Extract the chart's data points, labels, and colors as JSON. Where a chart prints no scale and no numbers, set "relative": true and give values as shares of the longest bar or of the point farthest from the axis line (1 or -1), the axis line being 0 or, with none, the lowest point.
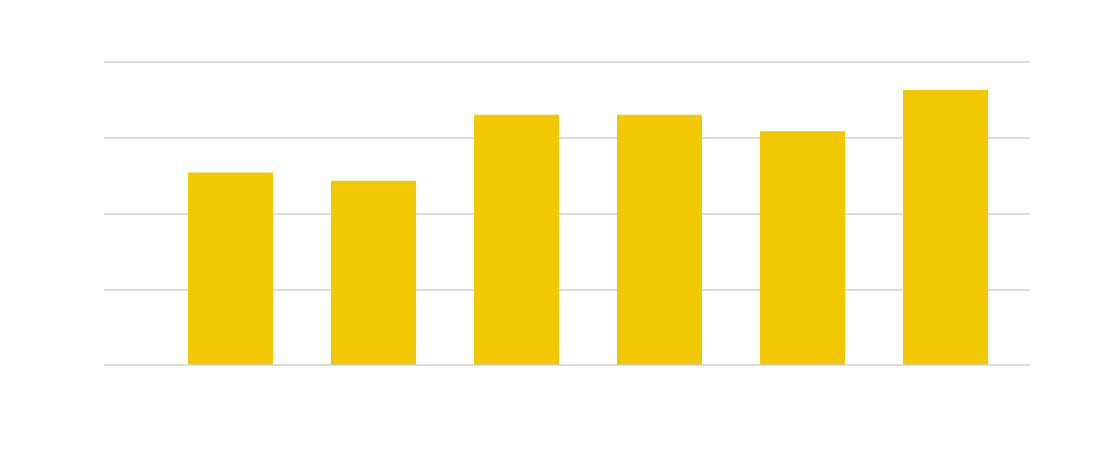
{
  "chart_data": {
    "type": "bar",
    "categories": [
      null,
      null,
      null,
      null,
      null,
      null
    ],
    "values": [
      0.7,
      0.67,
      0.91,
      0.91,
      0.85,
      1
    ],
    "color": "#f2c900",
    "relative": true,
    "grid": "y"
  }
}
